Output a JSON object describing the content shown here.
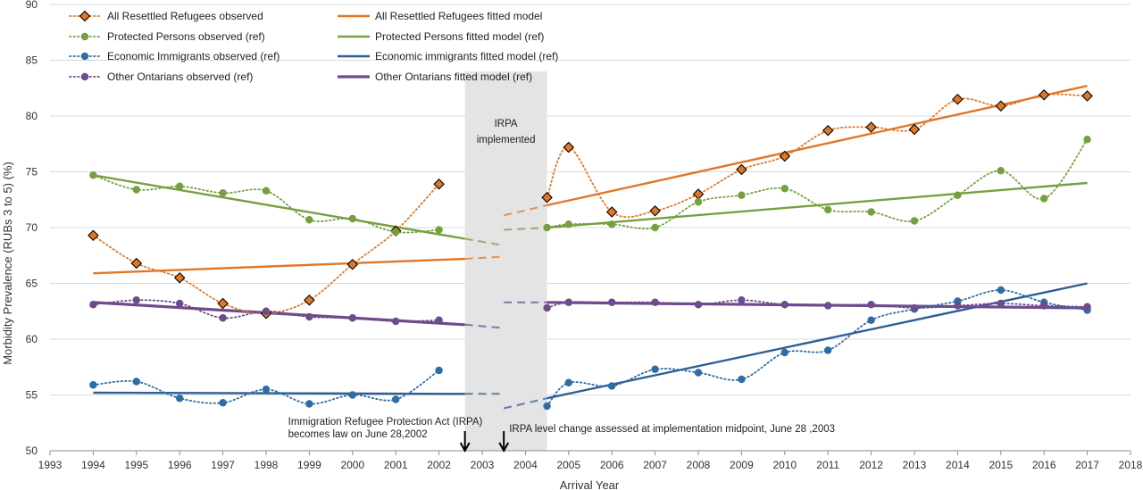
{
  "chart_data": {
    "type": "line",
    "title": "",
    "xlabel": "Arrival Year",
    "ylabel": "Morbidity Prevalence (RUBs 3 to 5) (%)",
    "xlim": [
      1993,
      2018
    ],
    "ylim": [
      50,
      90
    ],
    "xticks": [
      "1993",
      "1994",
      "1995",
      "1996",
      "1997",
      "1998",
      "1999",
      "2000",
      "2001",
      "2002",
      "2003",
      "2004",
      "2005",
      "2006",
      "2007",
      "2008",
      "2009",
      "2010",
      "2011",
      "2012",
      "2013",
      "2014",
      "2015",
      "2016",
      "2017",
      "2018"
    ],
    "yticks": [
      "50",
      "55",
      "60",
      "65",
      "70",
      "75",
      "80",
      "85",
      "90"
    ],
    "grid": "horizontal",
    "legend_position": "top-left",
    "shaded_region": {
      "x": [
        2002.6,
        2004.5
      ],
      "label_line1": "IRPA",
      "label_line2": "implemented"
    },
    "observed_series": [
      {
        "name": "All Resettled Refugees observed",
        "color": "#e07727",
        "marker": "diamond",
        "pre": {
          "x": [
            1994,
            1995,
            1996,
            1997,
            1998,
            1999,
            2000,
            2001,
            2002
          ],
          "y": [
            69.3,
            66.8,
            65.5,
            63.2,
            62.3,
            63.5,
            66.7,
            69.7,
            73.9
          ]
        },
        "post": {
          "x": [
            2004.5,
            2005,
            2006,
            2007,
            2008,
            2009,
            2010,
            2011,
            2012,
            2013,
            2014,
            2015,
            2016,
            2017
          ],
          "y": [
            72.7,
            77.2,
            71.4,
            71.5,
            73.0,
            75.2,
            76.4,
            78.7,
            79.0,
            78.8,
            81.5,
            80.9,
            81.9,
            81.8
          ]
        }
      },
      {
        "name": "Protected Persons observed (ref)",
        "color": "#76a040",
        "marker": "circle",
        "pre": {
          "x": [
            1994,
            1995,
            1996,
            1997,
            1998,
            1999,
            2000,
            2001,
            2002
          ],
          "y": [
            74.7,
            73.4,
            73.7,
            73.1,
            73.3,
            70.7,
            70.8,
            69.6,
            69.8
          ]
        },
        "post": {
          "x": [
            2004.5,
            2005,
            2006,
            2007,
            2008,
            2009,
            2010,
            2011,
            2012,
            2013,
            2014,
            2015,
            2016,
            2017
          ],
          "y": [
            70.0,
            70.3,
            70.3,
            70.0,
            72.3,
            72.9,
            73.5,
            71.6,
            71.4,
            70.6,
            72.9,
            75.1,
            72.6,
            77.9
          ]
        }
      },
      {
        "name": "Economic Immigrants observed (ref)",
        "color": "#2e6da4",
        "marker": "circle",
        "pre": {
          "x": [
            1994,
            1995,
            1996,
            1997,
            1998,
            1999,
            2000,
            2001,
            2002
          ],
          "y": [
            55.9,
            56.2,
            54.7,
            54.3,
            55.5,
            54.2,
            55.0,
            54.6,
            57.2
          ]
        },
        "post": {
          "x": [
            2004.5,
            2005,
            2006,
            2007,
            2008,
            2009,
            2010,
            2011,
            2012,
            2013,
            2014,
            2015,
            2016,
            2017
          ],
          "y": [
            54.0,
            56.1,
            55.8,
            57.3,
            57.0,
            56.4,
            58.8,
            59.0,
            61.7,
            62.7,
            63.4,
            64.4,
            63.3,
            62.6
          ]
        }
      },
      {
        "name": "Other Ontarians observed (ref)",
        "color": "#6e4b8c",
        "marker": "circle",
        "pre": {
          "x": [
            1994,
            1995,
            1996,
            1997,
            1998,
            1999,
            2000,
            2001,
            2002
          ],
          "y": [
            63.1,
            63.5,
            63.2,
            61.9,
            62.5,
            62.0,
            61.9,
            61.6,
            61.7
          ]
        },
        "post": {
          "x": [
            2004.5,
            2005,
            2006,
            2007,
            2008,
            2009,
            2010,
            2011,
            2012,
            2013,
            2014,
            2015,
            2016,
            2017
          ],
          "y": [
            62.8,
            63.3,
            63.3,
            63.3,
            63.1,
            63.5,
            63.1,
            63.0,
            63.1,
            62.8,
            63.0,
            63.2,
            63.0,
            62.9
          ]
        }
      }
    ],
    "fitted_series": [
      {
        "name": "All Resettled Refugees fitted model",
        "color": "#e07727",
        "width": 2.4,
        "pre": {
          "x": [
            1994,
            2002.6
          ],
          "y": [
            65.9,
            67.2
          ]
        },
        "pre_dash": {
          "x": [
            2002.6,
            2003.5
          ],
          "y": [
            67.2,
            67.4
          ]
        },
        "post_dash": {
          "x": [
            2003.5,
            2004.5
          ],
          "y": [
            71.1,
            72.0
          ]
        },
        "post": {
          "x": [
            2004.5,
            2017
          ],
          "y": [
            72.0,
            82.7
          ]
        }
      },
      {
        "name": "Protected Persons fitted model (ref)",
        "color": "#76a040",
        "width": 2.4,
        "pre": {
          "x": [
            1994,
            2002.6
          ],
          "y": [
            74.7,
            69.0
          ]
        },
        "pre_dash": {
          "x": [
            2002.6,
            2003.5
          ],
          "y": [
            69.0,
            68.4
          ]
        },
        "post_dash": {
          "x": [
            2003.5,
            2004.5
          ],
          "y": [
            69.8,
            70.0
          ]
        },
        "post": {
          "x": [
            2004.5,
            2017
          ],
          "y": [
            70.0,
            74.0
          ]
        }
      },
      {
        "name": "Economic immigrants fitted model (ref)",
        "color": "#2e5e94",
        "width": 2.4,
        "pre": {
          "x": [
            1994,
            2002.6
          ],
          "y": [
            55.2,
            55.1
          ]
        },
        "pre_dash": {
          "x": [
            2002.6,
            2003.5
          ],
          "y": [
            55.1,
            55.1
          ]
        },
        "post_dash": {
          "x": [
            2003.5,
            2004.5
          ],
          "y": [
            53.8,
            54.7
          ]
        },
        "post": {
          "x": [
            2004.5,
            2017
          ],
          "y": [
            54.7,
            65.0
          ]
        }
      },
      {
        "name": "Other Ontarians fitted model (ref)",
        "color": "#6e4b8c",
        "width": 3.2,
        "pre": {
          "x": [
            1994,
            2002.6
          ],
          "y": [
            63.3,
            61.3
          ]
        },
        "pre_dash": {
          "x": [
            2002.6,
            2003.5
          ],
          "y": [
            61.3,
            61.0
          ]
        },
        "post_dash": {
          "x": [
            2003.5,
            2004.5
          ],
          "y": [
            63.3,
            63.3
          ]
        },
        "post": {
          "x": [
            2004.5,
            2017
          ],
          "y": [
            63.3,
            62.8
          ]
        }
      }
    ],
    "annotations": [
      {
        "x": 2002.6,
        "lines": [
          "Immigration Refugee Protection Act (IRPA)",
          "becomes law on June 28,2002"
        ],
        "align": "end"
      },
      {
        "x": 2003.5,
        "lines": [
          "IRPA level change assessed at implementation midpoint, June 28 ,2003"
        ],
        "align": "start"
      }
    ]
  }
}
